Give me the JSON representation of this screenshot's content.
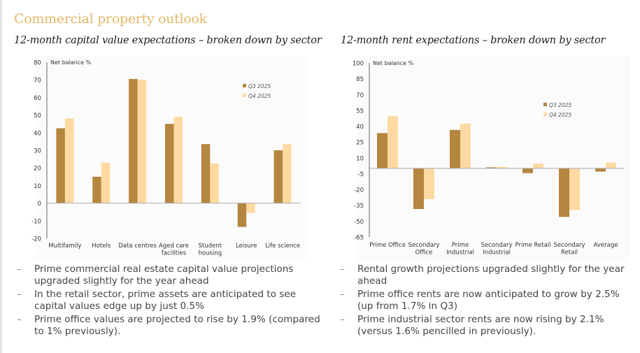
{
  "page": {
    "title": "Commercial property outlook"
  },
  "colors": {
    "q3": "#b5863f",
    "q4": "#fed9a1",
    "title_accent": "#e2b76a",
    "axis": "#999999"
  },
  "left": {
    "title": "12-month capital value expectations – broken down by sector",
    "bullets": [
      "Prime commercial real estate capital value projections upgraded slightly for the year ahead",
      "In the retail sector, prime assets are anticipated to see capital values edge up by just 0.5%",
      "Prime office values are projected to rise by 1.9% (compared to 1% previously)."
    ]
  },
  "right": {
    "title": "12-month rent expectations – broken down by sector",
    "bullets": [
      "Rental growth projections upgraded slightly for the year ahead",
      "Prime office rents are now anticipated to grow by 2.5% (up from 1.7% in Q3)",
      "Prime industrial sector rents are now rising by 2.1% (versus 1.6% pencilled in previously)."
    ]
  },
  "bullet_dash": "–",
  "chart_data": [
    {
      "type": "bar",
      "title": "12-month capital value expectations – broken down by sector",
      "ylabel": "Net balance %",
      "xlabel": "",
      "ylim": [
        -20,
        80
      ],
      "yticks": [
        80,
        70,
        60,
        50,
        40,
        30,
        20,
        10,
        0,
        -10,
        -20
      ],
      "grid": false,
      "legend": "top-right",
      "categories": [
        [
          "Multifamily"
        ],
        [
          "Hotels"
        ],
        [
          "Data centres"
        ],
        [
          "Aged care",
          "facilities"
        ],
        [
          "Student",
          "housing"
        ],
        [
          "Leisure"
        ],
        [
          "Life science"
        ]
      ],
      "series": [
        {
          "name": "Q3 2025",
          "values": [
            42.5,
            15,
            70.5,
            45,
            33.5,
            -13.5,
            30
          ]
        },
        {
          "name": "Q4 2025",
          "values": [
            48,
            23,
            70,
            49,
            22.5,
            -5.5,
            33.5
          ]
        }
      ]
    },
    {
      "type": "bar",
      "title": "12-month rent expectations – broken down by sector",
      "ylabel": "Net balance %",
      "xlabel": "",
      "ylim": [
        -65,
        100
      ],
      "yticks": [
        100,
        85,
        70,
        55,
        40,
        25,
        10,
        -5,
        -20,
        -35,
        -50,
        -65
      ],
      "grid": false,
      "legend": "right",
      "categories": [
        [
          "Prime Office"
        ],
        [
          "Secondary",
          "Office"
        ],
        [
          "Prime",
          "Industrial"
        ],
        [
          "Secondary",
          "Industrial"
        ],
        [
          "Prime Retail"
        ],
        [
          "Secondary",
          "Retail"
        ],
        [
          "Average"
        ]
      ],
      "series": [
        {
          "name": "Q3 2025",
          "values": [
            33.5,
            -38.5,
            36.5,
            1,
            -4.5,
            -46,
            -3
          ]
        },
        {
          "name": "Q4 2025",
          "values": [
            49.5,
            -29,
            42.5,
            1.5,
            4.5,
            -39.5,
            5.5
          ]
        }
      ]
    }
  ]
}
